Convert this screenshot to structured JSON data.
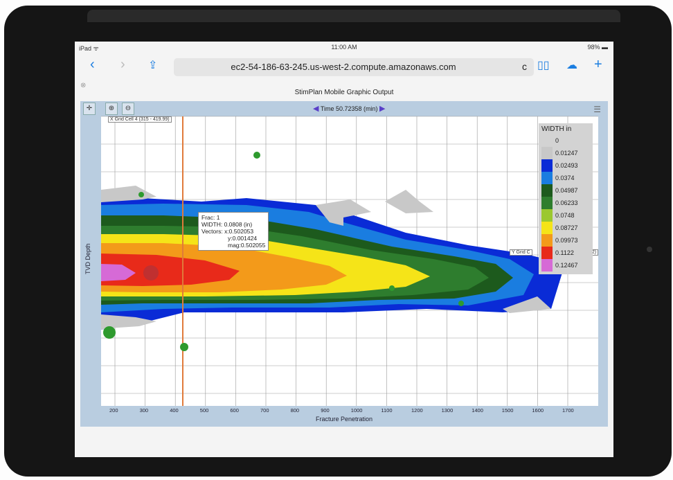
{
  "status": {
    "carrier": "iPad ᯤ",
    "time": "11:00 AM",
    "battery": "98%"
  },
  "browser": {
    "url": "ec2-54-186-63-245.us-west-2.compute.amazonaws.com",
    "reload": "c",
    "close": "⊗"
  },
  "page_title": "StimPlan Mobile Graphic Output",
  "plot": {
    "time_label": "Time 50.72358 (min)",
    "x_grid_label": "X Grid Cell 4 (315 - 419.99)",
    "y_grid_label": "Y Grid C",
    "y_grid_label_end": "62)",
    "xlabel": "Fracture Penetration",
    "ylabel": "TVD Depth",
    "tooltip": [
      "Frac: 1",
      "WIDTH: 0.0808 (in)",
      "Vectors: x:0.502053",
      "y:0.001424",
      "mag:0.502055"
    ]
  },
  "legend": {
    "title": "WIDTH in",
    "entries": [
      {
        "label": "0",
        "color": "#c8c8c8"
      },
      {
        "label": "0.01247",
        "color": "#0a2bd6"
      },
      {
        "label": "0.02493",
        "color": "#1a7de0"
      },
      {
        "label": "0.0374",
        "color": "#1d5a1d"
      },
      {
        "label": "0.04987",
        "color": "#2e7d2e"
      },
      {
        "label": "0.06233",
        "color": "#9bc82f"
      },
      {
        "label": "0.0748",
        "color": "#f5e418"
      },
      {
        "label": "0.08727",
        "color": "#f39a1a"
      },
      {
        "label": "0.09973",
        "color": "#e82a1a"
      },
      {
        "label": "0.1122",
        "color": "#d66ad6"
      },
      {
        "label": "0.12467",
        "color": "#ffffff"
      }
    ]
  },
  "chart_data": {
    "type": "heatmap",
    "xlabel": "Fracture Penetration",
    "ylabel": "TVD Depth",
    "x_ticks": [
      "200",
      "300",
      "400",
      "500",
      "600",
      "700",
      "800",
      "900",
      "1000",
      "1100",
      "1200",
      "1300",
      "1400",
      "1500",
      "1600",
      "1700"
    ],
    "colorbar_title": "WIDTH in"
  }
}
